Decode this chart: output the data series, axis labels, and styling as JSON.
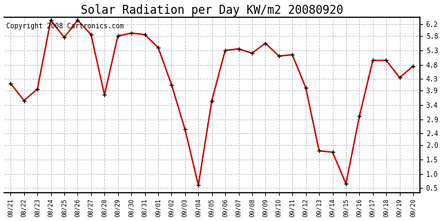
{
  "title": "Solar Radiation per Day KW/m2 20080920",
  "copyright": "Copyright 2008 Cartronics.com",
  "dates": [
    "08/21",
    "08/22",
    "08/23",
    "08/24",
    "08/25",
    "08/26",
    "08/27",
    "08/28",
    "08/29",
    "08/30",
    "08/31",
    "09/01",
    "09/02",
    "09/03",
    "09/04",
    "09/05",
    "09/06",
    "09/07",
    "09/08",
    "09/09",
    "09/10",
    "09/11",
    "09/12",
    "09/13",
    "09/14",
    "09/15",
    "09/16",
    "09/17",
    "09/18",
    "09/19",
    "09/20"
  ],
  "values": [
    4.15,
    3.55,
    3.95,
    6.35,
    5.75,
    6.35,
    5.85,
    3.75,
    5.8,
    5.9,
    5.85,
    5.4,
    4.1,
    2.55,
    0.6,
    3.55,
    5.3,
    5.35,
    5.2,
    5.55,
    5.1,
    5.15,
    4.0,
    1.8,
    1.75,
    0.65,
    3.0,
    4.95,
    4.95,
    4.35,
    4.75
  ],
  "yticks": [
    0.5,
    1.0,
    1.5,
    2.0,
    2.4,
    2.9,
    3.4,
    3.9,
    4.3,
    4.8,
    5.3,
    5.8,
    6.2
  ],
  "line_color": "#cc0000",
  "marker_color": "#000000",
  "marker_size": 3,
  "background_color": "#ffffff",
  "grid_color": "#bbbbbb",
  "ylim": [
    0.35,
    6.45
  ],
  "title_fontsize": 12,
  "copyright_fontsize": 7
}
